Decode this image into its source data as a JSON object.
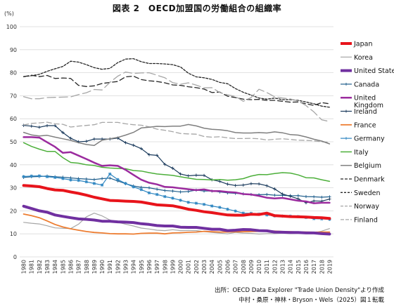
{
  "chart_data": {
    "type": "line",
    "title": "図表 2　OECD加盟国の労働組合の組織率",
    "yunit": "(%)",
    "ylim": [
      0,
      100
    ],
    "yticks": [
      0,
      10,
      20,
      30,
      40,
      50,
      60,
      70,
      80,
      90,
      100
    ],
    "x": [
      "1980",
      "1981",
      "1982",
      "1983",
      "1984",
      "1985",
      "1986",
      "1987",
      "1988",
      "1989",
      "1990",
      "1991",
      "1992",
      "1993",
      "1994",
      "1995",
      "1996",
      "1997",
      "1998",
      "1999",
      "2000",
      "2001",
      "2002",
      "2003",
      "2004",
      "2005",
      "2006",
      "2007",
      "2008",
      "2009",
      "2010",
      "2011",
      "2012",
      "2013",
      "2014",
      "2015",
      "2016",
      "2017",
      "2018",
      "2019"
    ],
    "legend_position": "right",
    "grid": true,
    "series": [
      {
        "name": "Japan",
        "color": "#e8141b",
        "width": 4,
        "dash": "",
        "marker": "none",
        "values": [
          31,
          30.8,
          30.5,
          29.7,
          29.1,
          28.9,
          28.2,
          27.6,
          26.8,
          25.9,
          25.2,
          24.5,
          24.4,
          24.2,
          24.1,
          23.8,
          23.2,
          22.6,
          22.4,
          22.2,
          21.5,
          20.7,
          20.2,
          19.6,
          19.2,
          18.7,
          18.2,
          18.1,
          18.1,
          18.5,
          18.4,
          19.0,
          17.9,
          17.7,
          17.5,
          17.4,
          17.3,
          17.1,
          17.0,
          16.7
        ]
      },
      {
        "name": "Korea",
        "color": "#a6a6a6",
        "width": 1.2,
        "dash": "",
        "marker": "none",
        "values": [
          15.0,
          14.6,
          14.3,
          13.5,
          12.6,
          12.4,
          12.3,
          14.2,
          17.4,
          19.0,
          17.8,
          16.0,
          15.0,
          14.2,
          13.4,
          12.5,
          12.1,
          11.6,
          11.4,
          11.8,
          11.4,
          11.5,
          11.4,
          11.0,
          10.6,
          10.3,
          10.0,
          10.6,
          10.3,
          10.2,
          9.9,
          10.1,
          10.1,
          10.3,
          10.1,
          10.2,
          10.3,
          10.4,
          11.2,
          12.3
        ]
      },
      {
        "name": "United States",
        "color": "#7030a0",
        "width": 4,
        "dash": "",
        "marker": "none",
        "values": [
          22,
          21.0,
          20.0,
          19.4,
          18.2,
          17.6,
          17.0,
          16.5,
          16.3,
          16.0,
          15.5,
          15.5,
          15.2,
          15.1,
          14.9,
          14.4,
          14.1,
          13.6,
          13.4,
          13.4,
          12.9,
          12.8,
          12.8,
          12.4,
          12.0,
          12.0,
          11.4,
          11.6,
          11.9,
          11.8,
          11.4,
          11.3,
          10.8,
          10.7,
          10.6,
          10.6,
          10.4,
          10.4,
          10.1,
          9.9
        ]
      },
      {
        "name": "Canada",
        "color": "#1f5e8c",
        "width": 1.2,
        "dash": "",
        "marker": "plus",
        "values": [
          34.5,
          34.8,
          34.9,
          35.1,
          34.8,
          34.6,
          34.3,
          34.0,
          33.8,
          33.6,
          34.0,
          34.2,
          33.0,
          31.8,
          30.8,
          30.2,
          30.0,
          29.4,
          28.8,
          28.6,
          28.2,
          28.4,
          29.0,
          28.6,
          28.6,
          28.2,
          27.8,
          27.6,
          27.4,
          27.1,
          27.0,
          27.1,
          26.8,
          26.7,
          26.6,
          26.6,
          26.2,
          26.1,
          25.9,
          26.1
        ]
      },
      {
        "name": "United Kingdom",
        "color": "#9b2b9e",
        "width": 2.5,
        "dash": "",
        "marker": "none",
        "values": [
          52.0,
          52.0,
          51.8,
          49.8,
          47.8,
          45.2,
          45.5,
          44.0,
          42.5,
          40.9,
          39.5,
          39.8,
          39.5,
          37.8,
          35.6,
          33.5,
          32.2,
          31.5,
          30.4,
          30.2,
          29.8,
          29.4,
          29.0,
          29.3,
          28.6,
          28.6,
          28.2,
          28.0,
          27.3,
          27.1,
          26.5,
          25.7,
          25.4,
          25.6,
          25.0,
          24.4,
          24.1,
          23.3,
          23.5,
          23.5
        ]
      },
      {
        "name": "Ireland",
        "color": "#1a3a5c",
        "width": 1.2,
        "dash": "",
        "marker": "plus",
        "values": [
          57.1,
          56.8,
          56.3,
          57.0,
          57.0,
          54.0,
          51.5,
          50.0,
          50.2,
          51.2,
          51.2,
          51.2,
          51.6,
          49.6,
          48.5,
          47.0,
          44.4,
          44.1,
          40.2,
          38.5,
          36.0,
          35.2,
          35.5,
          35.4,
          33.5,
          32.8,
          31.6,
          31.0,
          31.2,
          31.8,
          31.7,
          30.9,
          29.5,
          27.3,
          26.3,
          25.2,
          23.5,
          24.3,
          24.2,
          25.1
        ]
      },
      {
        "name": "France",
        "color": "#ed7d31",
        "width": 1.8,
        "dash": "",
        "marker": "none",
        "values": [
          18.6,
          17.9,
          17.0,
          15.6,
          14.1,
          13.0,
          12.2,
          11.6,
          11.0,
          10.6,
          10.4,
          10.1,
          10.0,
          10.0,
          9.9,
          10.2,
          10.3,
          10.3,
          10.0,
          10.4,
          10.5,
          10.7,
          10.8,
          11.1,
          10.9,
          10.8,
          10.8,
          10.9,
          10.9,
          11.0,
          11.1,
          11.2,
          11.2,
          11.0,
          10.9,
          10.8,
          10.8,
          10.7,
          10.8,
          10.8
        ]
      },
      {
        "name": "Germany",
        "color": "#2e86c1",
        "width": 1.2,
        "dash": "",
        "marker": "star",
        "values": [
          34.9,
          35.1,
          35.2,
          34.8,
          34.5,
          34.0,
          33.4,
          33.2,
          32.6,
          31.9,
          31.2,
          36.0,
          33.6,
          31.9,
          30.4,
          29.2,
          27.8,
          27.1,
          26.2,
          25.5,
          24.6,
          23.7,
          23.3,
          22.8,
          22.1,
          21.5,
          20.7,
          19.9,
          19.0,
          18.9,
          18.6,
          18.2,
          17.8,
          17.7,
          17.7,
          17.5,
          17.1,
          16.6,
          16.5,
          16.3
        ]
      },
      {
        "name": "Italy",
        "color": "#4caf3a",
        "width": 1.5,
        "dash": "",
        "marker": "none",
        "values": [
          49.6,
          48.0,
          46.8,
          45.8,
          45.8,
          43.1,
          41.0,
          40.7,
          40.0,
          39.7,
          38.9,
          38.6,
          38.4,
          38.3,
          37.5,
          37.3,
          36.6,
          36.0,
          35.7,
          35.4,
          34.8,
          34.2,
          33.7,
          33.6,
          33.4,
          33.6,
          33.3,
          33.5,
          34.0,
          35.1,
          35.8,
          35.7,
          36.2,
          36.6,
          36.4,
          35.6,
          34.4,
          34.3,
          33.5,
          32.8
        ]
      },
      {
        "name": "Belgium",
        "color": "#7f7f7f",
        "width": 1.5,
        "dash": "",
        "marker": "none",
        "values": [
          54.1,
          53.0,
          52.5,
          52.8,
          52.0,
          51.3,
          50.6,
          49.6,
          48.8,
          48.4,
          50.7,
          51.3,
          51.9,
          52.9,
          54.1,
          56.0,
          56.3,
          56.7,
          56.6,
          56.8,
          56.8,
          57.5,
          56.9,
          55.9,
          55.4,
          55.2,
          54.8,
          54.0,
          53.8,
          53.8,
          54.0,
          53.8,
          54.3,
          53.9,
          53.1,
          52.9,
          52.1,
          51.1,
          50.3,
          49.1
        ]
      },
      {
        "name": "Denmark",
        "color": "#262626",
        "width": 1.3,
        "dash": "7,4",
        "marker": "none",
        "values": [
          78.3,
          78.9,
          78.3,
          78.8,
          77.5,
          77.7,
          77.5,
          74.5,
          74.0,
          74.3,
          75.3,
          75.8,
          76.2,
          78.2,
          78.5,
          77.0,
          76.5,
          76.2,
          75.6,
          74.7,
          74.5,
          73.9,
          73.5,
          72.9,
          71.4,
          71.6,
          69.8,
          69.2,
          68.5,
          68.3,
          68.4,
          68.0,
          68.0,
          67.6,
          67.2,
          67.3,
          66.5,
          65.8,
          67.0,
          66.5
        ]
      },
      {
        "name": "Sweden",
        "color": "#262626",
        "width": 1.3,
        "dash": "3,2",
        "marker": "none",
        "values": [
          78.3,
          78.7,
          79.3,
          80.6,
          81.7,
          82.7,
          85.0,
          84.6,
          83.5,
          82.2,
          81.5,
          81.9,
          84.4,
          85.9,
          86.1,
          84.8,
          84.0,
          84.0,
          83.8,
          83.5,
          82.5,
          79.8,
          78.2,
          77.8,
          77.1,
          75.8,
          75.2,
          73.1,
          71.5,
          70.3,
          69.0,
          68.5,
          69.0,
          68.3,
          68.3,
          68.0,
          67.3,
          66.5,
          65.5,
          65.0
        ]
      },
      {
        "name": "Norway",
        "color": "#a6a6a6",
        "width": 1.3,
        "dash": "7,4",
        "marker": "none",
        "values": [
          57.3,
          58.0,
          58.2,
          58.5,
          57.8,
          57.6,
          56.4,
          56.8,
          57.1,
          57.4,
          58.4,
          58.4,
          58.4,
          57.8,
          57.4,
          57.2,
          56.5,
          55.5,
          55.0,
          54.4,
          53.6,
          53.4,
          53.3,
          52.3,
          52.0,
          52.2,
          51.7,
          51.4,
          51.4,
          51.5,
          51.3,
          50.8,
          51.1,
          51.3,
          51.0,
          50.7,
          50.6,
          50.4,
          50.0,
          49.8
        ]
      },
      {
        "name": "Finland",
        "color": "#a6a6a6",
        "width": 1.3,
        "dash": "12,5",
        "marker": "none",
        "values": [
          69.6,
          68.7,
          68.7,
          69.2,
          69.3,
          69.4,
          69.5,
          70.5,
          71.3,
          72.7,
          72.5,
          75.8,
          78.5,
          80.3,
          79.7,
          79.9,
          80.0,
          78.9,
          77.8,
          75.7,
          75.0,
          75.6,
          74.6,
          73.4,
          73.5,
          71.4,
          70.4,
          69.7,
          67.6,
          69.2,
          72.8,
          71.4,
          69.5,
          69.0,
          68.6,
          67.7,
          65.7,
          63.0,
          59.5,
          58.8
        ]
      }
    ]
  },
  "notes": {
    "source": "出所：OECD Data Explorer \"Trade Union Density\"より作成",
    "credit": "中村・桑原・神林・Bryson・Wels（2025）図１転載"
  }
}
